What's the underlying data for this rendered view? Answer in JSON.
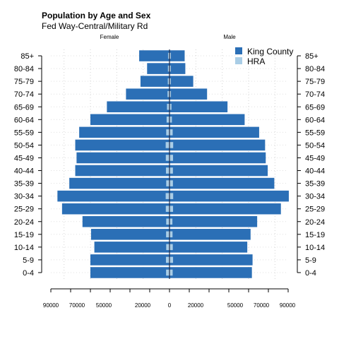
{
  "chart_data": {
    "type": "bar",
    "orientation": "horizontal-population-pyramid",
    "title": "Population by Age and Sex",
    "subtitle": "Fed Way-Central/Military Rd",
    "left_label": "Female",
    "right_label": "Male",
    "categories": [
      "0-4",
      "5-9",
      "10-14",
      "15-19",
      "20-24",
      "25-29",
      "30-34",
      "35-39",
      "40-44",
      "45-49",
      "50-54",
      "55-59",
      "60-64",
      "65-69",
      "70-74",
      "75-79",
      "80-84",
      "85+"
    ],
    "series": [
      {
        "name": "King County",
        "color": "#2b6fb6",
        "female": [
          60000,
          60000,
          57000,
          59500,
          66000,
          81500,
          85000,
          76000,
          71500,
          70500,
          71500,
          68500,
          60000,
          47500,
          33000,
          22000,
          17000,
          23000
        ],
        "male": [
          62500,
          63000,
          59000,
          61500,
          66500,
          84500,
          90500,
          79500,
          74500,
          73000,
          72500,
          68000,
          57000,
          44000,
          28500,
          18000,
          12000,
          11500
        ]
      },
      {
        "name": "HRA",
        "color": "#a9cde6",
        "female": [
          2600,
          2700,
          2500,
          2600,
          2500,
          2800,
          2900,
          2500,
          2700,
          2800,
          2900,
          2500,
          2200,
          1900,
          1500,
          1300,
          1200,
          1100
        ],
        "male": [
          2400,
          2700,
          2500,
          2300,
          2200,
          2700,
          2800,
          2600,
          2600,
          2700,
          2800,
          2400,
          1800,
          1500,
          1100,
          800,
          700,
          500
        ]
      }
    ],
    "x_ticks_left": [
      "90000",
      "70000",
      "50000",
      "20000"
    ],
    "x_ticks_center": "0",
    "x_ticks_right": [
      "20000",
      "50000",
      "70000",
      "90000"
    ],
    "xlim": [
      -90000,
      90000
    ],
    "grid": true,
    "legend_position": "top-right"
  }
}
